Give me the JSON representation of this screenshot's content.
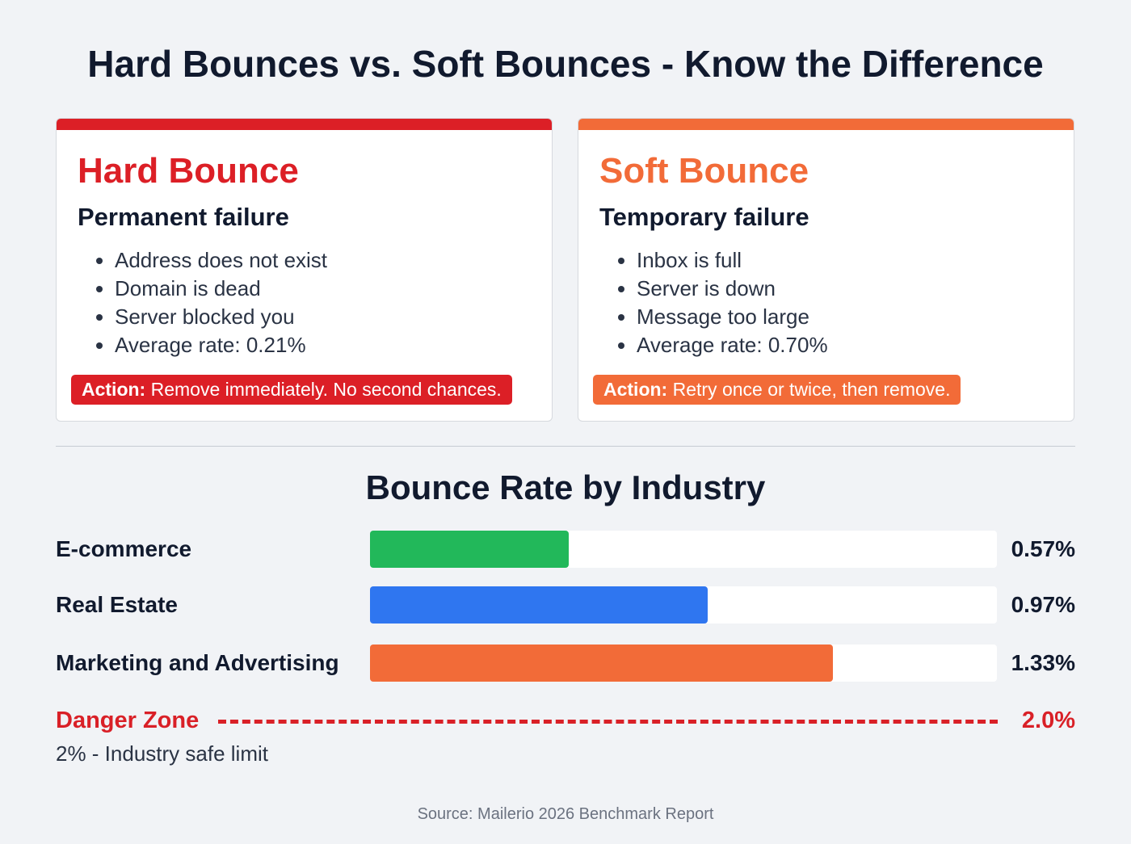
{
  "title": "Hard Bounces vs. Soft Bounces - Know the Difference",
  "cards": [
    {
      "heading": "Hard Bounce",
      "subheading": "Permanent failure",
      "color": "#dc1f26",
      "items": [
        "Address does not exist",
        "Domain is dead",
        "Server blocked you",
        "Average rate: 0.21%"
      ],
      "action_label": "Action:",
      "action_text": " Remove immediately. No second chances."
    },
    {
      "heading": "Soft Bounce",
      "subheading": "Temporary failure",
      "color": "#f26b38",
      "items": [
        "Inbox is full",
        "Server is down",
        "Message too large",
        "Average rate: 0.70%"
      ],
      "action_label": "Action:",
      "action_text": " Retry once or twice, then remove."
    }
  ],
  "chart_data": {
    "type": "bar",
    "title": "Bounce Rate by Industry",
    "categories": [
      "E-commerce",
      "Real Estate",
      "Marketing and Advertising"
    ],
    "values": [
      0.57,
      0.97,
      1.33
    ],
    "value_labels": [
      "0.57%",
      "0.97%",
      "1.33%"
    ],
    "colors": [
      "#22b85a",
      "#2f76f0",
      "#f26b38"
    ],
    "xlim": [
      0,
      1.8
    ],
    "unit": "%",
    "threshold": {
      "label": "Danger Zone",
      "value": 2.0,
      "value_label": "2.0%",
      "note": "2% - Industry safe limit",
      "color": "#d92027"
    }
  },
  "source": "Source: Mailerio 2026 Benchmark Report"
}
